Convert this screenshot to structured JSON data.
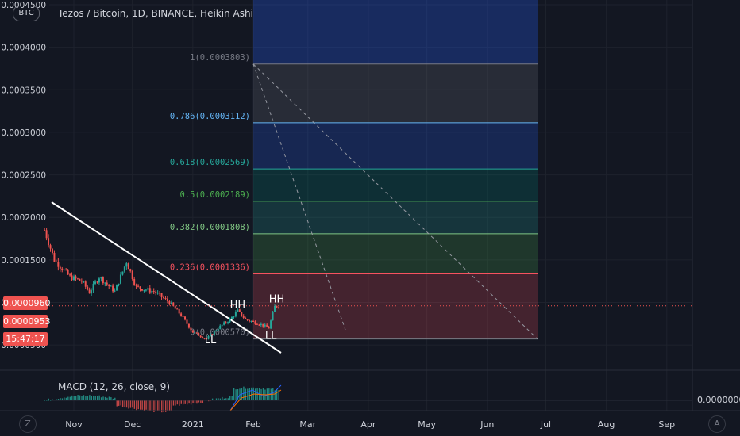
{
  "header": {
    "symbol_tag": "BTC",
    "title": "Tezos / Bitcoin, 1D, BINANCE, Heikin Ashi"
  },
  "price_labels": {
    "last_close": "0.0000960",
    "prev_price": "0.0000953",
    "countdown": "15:47:17"
  },
  "macd": {
    "label": "MACD (12, 26, close, 9)",
    "value": "0.0000000"
  },
  "corner_buttons": {
    "left": "Z",
    "right": "A"
  },
  "colors": {
    "background": "#131722",
    "up": "#26a69a",
    "down": "#ef5350",
    "grid": "#1e222d",
    "text": "#d1d4dc"
  },
  "chart_data": [
    {
      "type": "candlestick",
      "title": "Tezos / Bitcoin, 1D, BINANCE, Heikin Ashi",
      "y_axis": {
        "ticks": [
          "0.0004500",
          "0.0004000",
          "0.0003500",
          "0.0003000",
          "0.0002500",
          "0.0002000",
          "0.0001500",
          "0.0001000",
          "0.0000500"
        ],
        "ylim": [
          5e-05,
          0.00045
        ]
      },
      "x_axis": {
        "ticks": [
          "Nov",
          "Dec",
          "2021",
          "Feb",
          "Mar",
          "Apr",
          "May",
          "Jun",
          "Jul",
          "Aug",
          "Sep"
        ]
      },
      "price_path": [
        {
          "date": "2020-10-17",
          "value": 0.000185
        },
        {
          "date": "2020-10-22",
          "value": 0.00015
        },
        {
          "date": "2020-10-30",
          "value": 0.00013
        },
        {
          "date": "2020-11-05",
          "value": 0.000125
        },
        {
          "date": "2020-11-09",
          "value": 0.000112
        },
        {
          "date": "2020-11-14",
          "value": 0.00013
        },
        {
          "date": "2020-11-22",
          "value": 0.000113
        },
        {
          "date": "2020-11-28",
          "value": 0.000148
        },
        {
          "date": "2020-12-03",
          "value": 0.000118
        },
        {
          "date": "2020-12-12",
          "value": 0.000113
        },
        {
          "date": "2020-12-20",
          "value": 0.0001
        },
        {
          "date": "2020-12-26",
          "value": 8.5e-05
        },
        {
          "date": "2021-01-01",
          "value": 6.5e-05
        },
        {
          "date": "2021-01-08",
          "value": 5.7e-05
        },
        {
          "date": "2021-01-14",
          "value": 7e-05
        },
        {
          "date": "2021-01-20",
          "value": 8e-05
        },
        {
          "date": "2021-01-24",
          "value": 9e-05
        },
        {
          "date": "2021-01-28",
          "value": 8e-05
        },
        {
          "date": "2021-02-04",
          "value": 7.5e-05
        },
        {
          "date": "2021-02-09",
          "value": 7e-05
        },
        {
          "date": "2021-02-12",
          "value": 9.5e-05
        },
        {
          "date": "2021-02-14",
          "value": 9.6e-05
        }
      ],
      "fibonacci_levels": [
        {
          "label": "1(0.0003803)",
          "value": 0.0003803,
          "color": "#787b86"
        },
        {
          "label": "0.786(0.0003112)",
          "value": 0.0003112,
          "color": "#64b5f6"
        },
        {
          "label": "0.618(0.0002569)",
          "value": 0.0002569,
          "color": "#26a69a"
        },
        {
          "label": "0.5(0.0002189)",
          "value": 0.0002189,
          "color": "#4caf50"
        },
        {
          "label": "0.382(0.0001808)",
          "value": 0.0001808,
          "color": "#81c784"
        },
        {
          "label": "0.236(0.0001336)",
          "value": 0.0001336,
          "color": "#f7525f"
        },
        {
          "label": "0(0.0000570)",
          "value": 5.7e-05,
          "color": "#787b86"
        }
      ],
      "annotations": [
        {
          "text": "HH",
          "date": "2021-01-24",
          "value": 9.3e-05
        },
        {
          "text": "HH",
          "date": "2021-02-13",
          "value": 0.0001
        },
        {
          "text": "LL",
          "date": "2021-01-10",
          "value": 5.2e-05
        },
        {
          "text": "LL",
          "date": "2021-02-10",
          "value": 5.7e-05
        }
      ]
    },
    {
      "type": "bar",
      "title": "MACD (12, 26, close, 9)",
      "value_label": "0.0000000"
    }
  ]
}
